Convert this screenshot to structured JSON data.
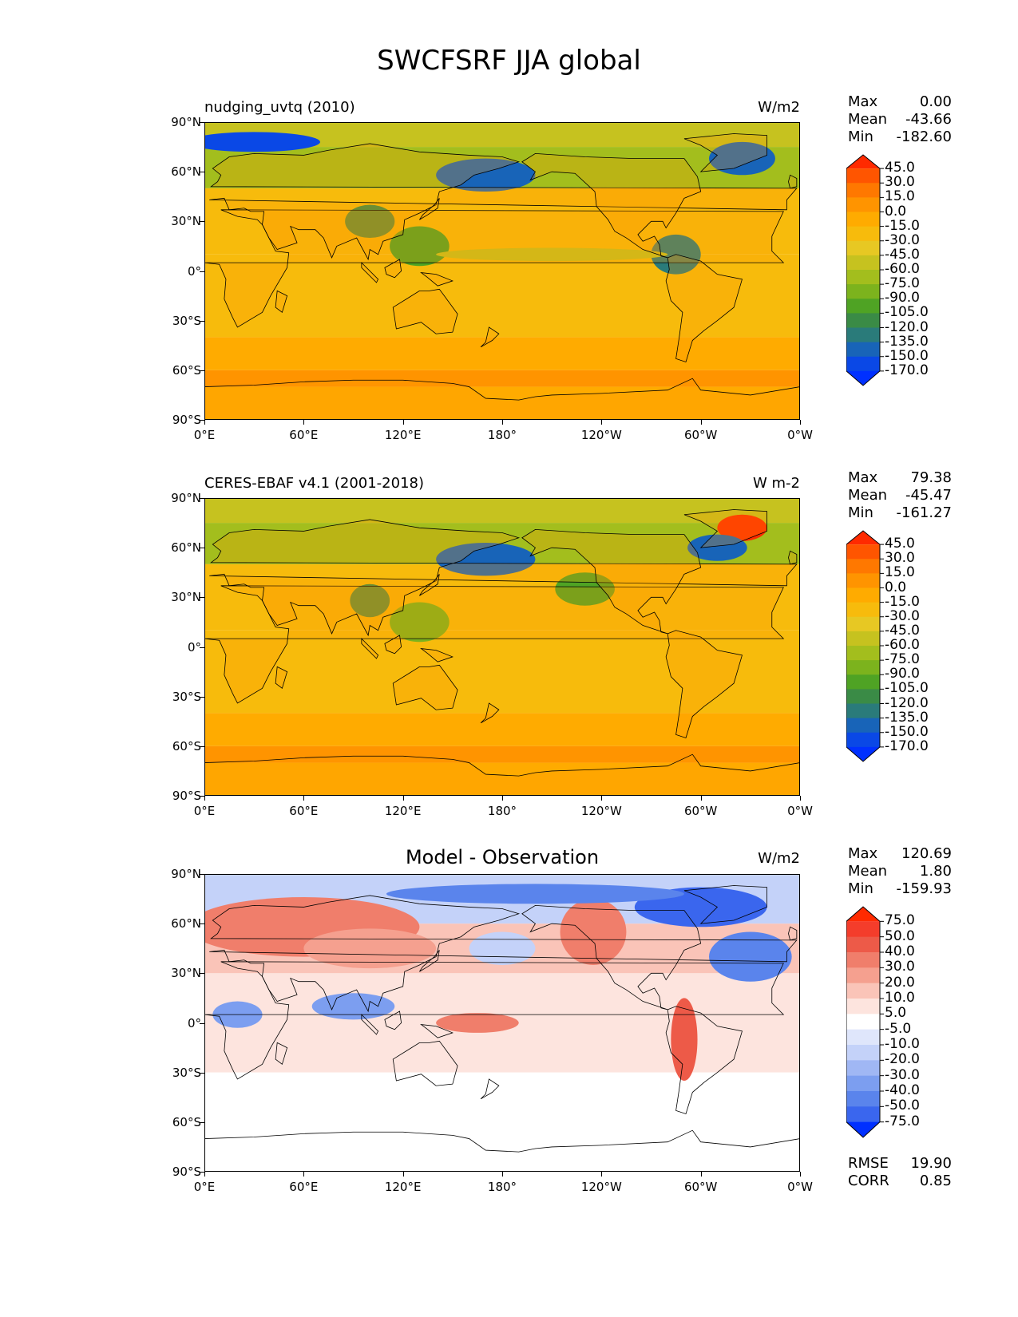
{
  "title": "SWCFSRF JJA global",
  "x_ticks": [
    "0°E",
    "60°E",
    "120°E",
    "180°",
    "120°W",
    "60°W",
    "0°W"
  ],
  "y_ticks": [
    "90°N",
    "60°N",
    "30°N",
    "0°",
    "30°S",
    "60°S",
    "90°S"
  ],
  "panels": [
    {
      "title_left": "nudging_uvtq (2010)",
      "title_center": "",
      "units": "W/m2",
      "stats": [
        {
          "label": "Max",
          "value": "0.00"
        },
        {
          "label": "Mean",
          "value": "-43.66"
        },
        {
          "label": "Min",
          "value": "-182.60"
        }
      ],
      "colorbar": {
        "labels": [
          "45.0",
          "30.0",
          "15.0",
          "0.0",
          "-15.0",
          "-30.0",
          "-45.0",
          "-60.0",
          "-75.0",
          "-90.0",
          "-105.0",
          "-120.0",
          "-135.0",
          "-150.0",
          "-170.0"
        ],
        "colors": [
          "#ff2a00",
          "#ff5500",
          "#ff7800",
          "#ff9400",
          "#ffab00",
          "#f7bb0c",
          "#e7c823",
          "#c6c21f",
          "#a3be1d",
          "#7cb31d",
          "#4fa324",
          "#3a8b46",
          "#2a7b7a",
          "#1864b8",
          "#0a48e6",
          "#0030ff"
        ]
      }
    },
    {
      "title_left": "CERES-EBAF v4.1 (2001-2018)",
      "title_center": "",
      "units": "W m-2",
      "stats": [
        {
          "label": "Max",
          "value": "79.38"
        },
        {
          "label": "Mean",
          "value": "-45.47"
        },
        {
          "label": "Min",
          "value": "-161.27"
        }
      ],
      "colorbar": {
        "labels": [
          "45.0",
          "30.0",
          "15.0",
          "0.0",
          "-15.0",
          "-30.0",
          "-45.0",
          "-60.0",
          "-75.0",
          "-90.0",
          "-105.0",
          "-120.0",
          "-135.0",
          "-150.0",
          "-170.0"
        ],
        "colors": [
          "#ff2a00",
          "#ff5500",
          "#ff7800",
          "#ff9400",
          "#ffab00",
          "#f7bb0c",
          "#e7c823",
          "#c6c21f",
          "#a3be1d",
          "#7cb31d",
          "#4fa324",
          "#3a8b46",
          "#2a7b7a",
          "#1864b8",
          "#0a48e6",
          "#0030ff"
        ]
      }
    },
    {
      "title_left": "",
      "title_center": "Model - Observation",
      "units": "W/m2",
      "stats": [
        {
          "label": "Max",
          "value": "120.69"
        },
        {
          "label": "Mean",
          "value": "1.80"
        },
        {
          "label": "Min",
          "value": "-159.93"
        }
      ],
      "extra_stats": [
        {
          "label": "RMSE",
          "value": "19.90"
        },
        {
          "label": "CORR",
          "value": "0.85"
        }
      ],
      "colorbar": {
        "labels": [
          "75.0",
          "50.0",
          "40.0",
          "30.0",
          "20.0",
          "10.0",
          "5.0",
          "-5.0",
          "-10.0",
          "-20.0",
          "-30.0",
          "-40.0",
          "-50.0",
          "-75.0"
        ],
        "colors": [
          "#ff2a00",
          "#f43d2b",
          "#ed5a48",
          "#f07e6b",
          "#f5a08f",
          "#fac4b8",
          "#fde4de",
          "#ffffff",
          "#dfe6fb",
          "#c4d2f9",
          "#a0b7f4",
          "#7c9ef0",
          "#5a84ec",
          "#3a66ee",
          "#0030ff"
        ]
      }
    }
  ],
  "chart_data": [
    {
      "type": "heatmap",
      "title": "SWCFSRF JJA global",
      "subtitle": "nudging_uvtq (2010)",
      "units": "W/m2",
      "x_ticks": [
        "0°E",
        "60°E",
        "120°E",
        "180°",
        "120°W",
        "60°W",
        "0°W"
      ],
      "y_ticks": [
        "90°N",
        "60°N",
        "30°N",
        "0°",
        "30°S",
        "60°S",
        "90°S"
      ],
      "stats": {
        "Max": 0.0,
        "Mean": -43.66,
        "Min": -182.6
      },
      "levels": [
        45,
        30,
        15,
        0,
        -15,
        -30,
        -45,
        -60,
        -75,
        -90,
        -105,
        -120,
        -135,
        -150,
        -170
      ]
    },
    {
      "type": "heatmap",
      "subtitle": "CERES-EBAF v4.1 (2001-2018)",
      "units": "W m-2",
      "x_ticks": [
        "0°E",
        "60°E",
        "120°E",
        "180°",
        "120°W",
        "60°W",
        "0°W"
      ],
      "y_ticks": [
        "90°N",
        "60°N",
        "30°N",
        "0°",
        "30°S",
        "60°S",
        "90°S"
      ],
      "stats": {
        "Max": 79.38,
        "Mean": -45.47,
        "Min": -161.27
      },
      "levels": [
        45,
        30,
        15,
        0,
        -15,
        -30,
        -45,
        -60,
        -75,
        -90,
        -105,
        -120,
        -135,
        -150,
        -170
      ]
    },
    {
      "type": "heatmap",
      "subtitle": "Model - Observation",
      "units": "W/m2",
      "x_ticks": [
        "0°E",
        "60°E",
        "120°E",
        "180°",
        "120°W",
        "60°W",
        "0°W"
      ],
      "y_ticks": [
        "90°N",
        "60°N",
        "30°N",
        "0°",
        "30°S",
        "60°S",
        "90°S"
      ],
      "stats": {
        "Max": 120.69,
        "Mean": 1.8,
        "Min": -159.93,
        "RMSE": 19.9,
        "CORR": 0.85
      },
      "levels": [
        75,
        50,
        40,
        30,
        20,
        10,
        5,
        -5,
        -10,
        -20,
        -30,
        -40,
        -50,
        -75
      ]
    }
  ]
}
